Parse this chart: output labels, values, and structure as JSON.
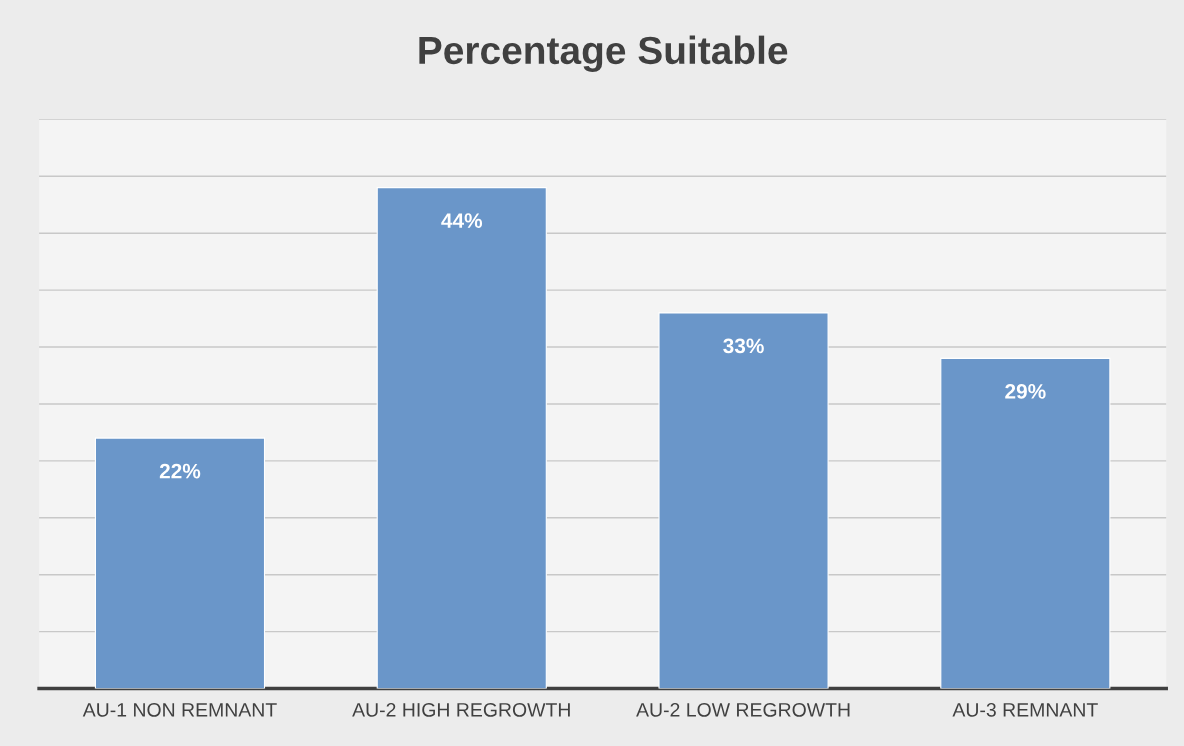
{
  "chart_data": {
    "type": "bar",
    "title": "Percentage Suitable",
    "categories": [
      "AU-1 NON REMNANT",
      "AU-2 HIGH REGROWTH",
      "AU-2 LOW REGROWTH",
      "AU-3 REMNANT"
    ],
    "values": [
      22,
      44,
      33,
      29
    ],
    "value_labels": [
      "22%",
      "44%",
      "33%",
      "29%"
    ],
    "color": "#6a96c9",
    "ylim": [
      0,
      50
    ],
    "yticks": [
      {
        "value": 0,
        "label": null
      },
      {
        "value": 5,
        "label": null
      },
      {
        "value": 10,
        "label": null
      },
      {
        "value": 15,
        "label": null
      },
      {
        "value": 20,
        "label": null
      },
      {
        "value": 25,
        "label": null
      },
      {
        "value": 30,
        "label": null
      },
      {
        "value": 35,
        "label": null
      },
      {
        "value": 40,
        "label": null
      },
      {
        "value": 45,
        "label": null
      },
      {
        "value": 50,
        "label": null
      }
    ],
    "tick_labels": "x",
    "grid": "y",
    "legend": false
  }
}
